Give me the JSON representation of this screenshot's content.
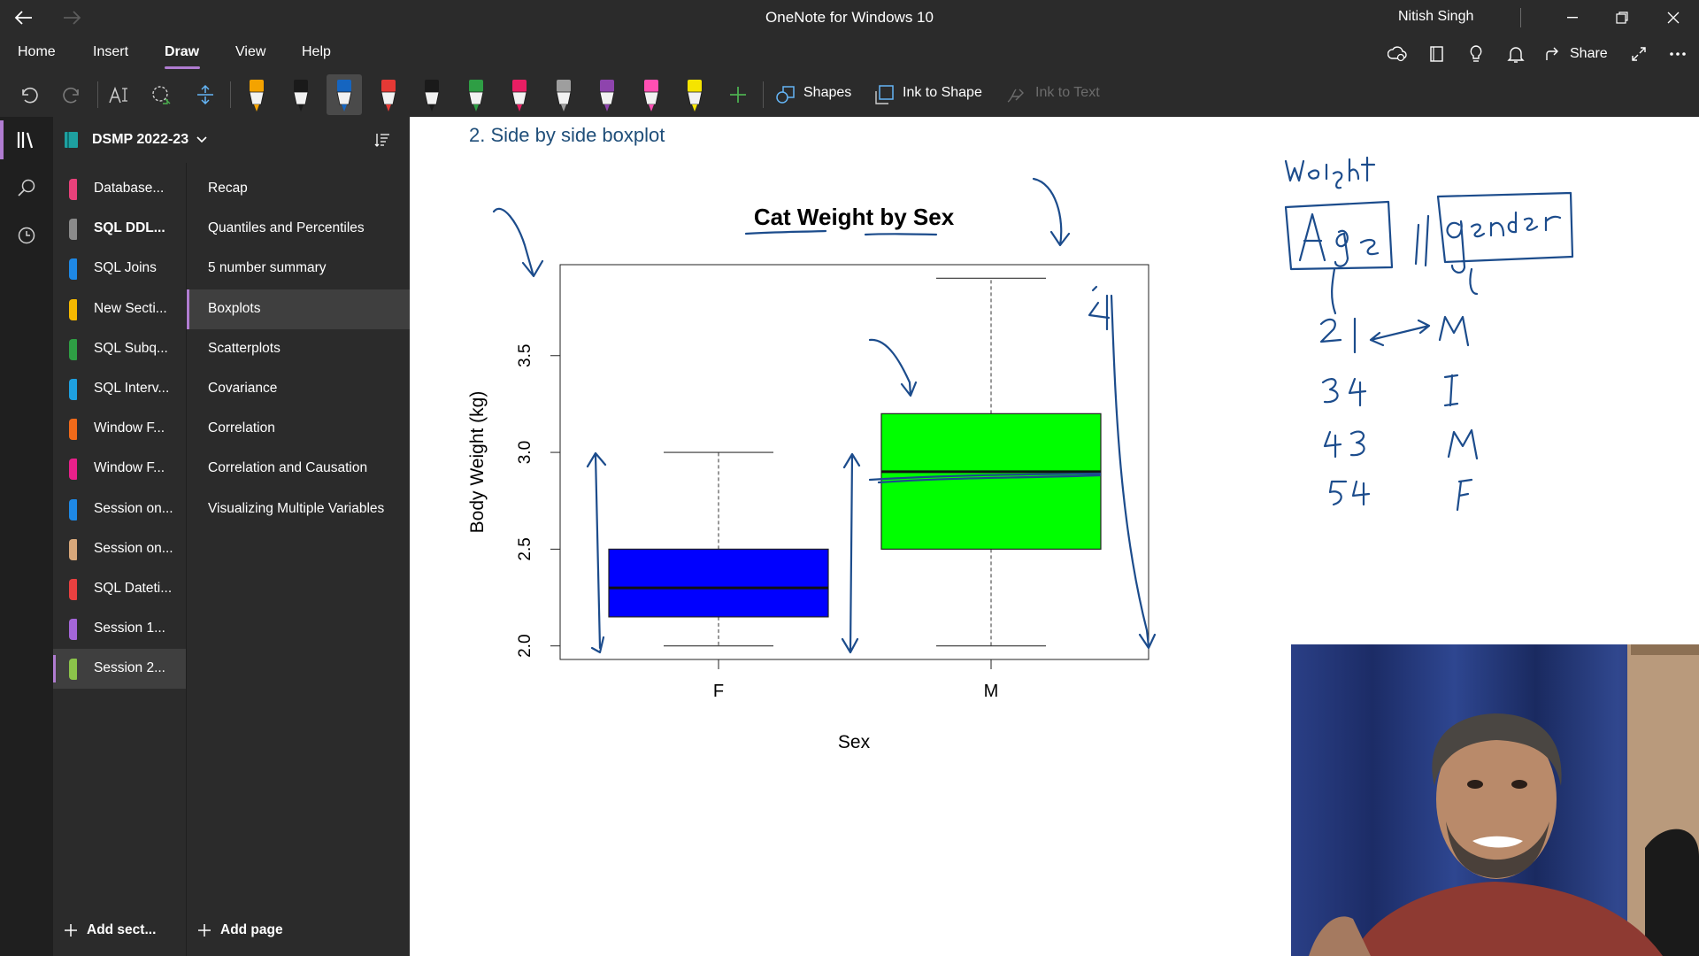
{
  "window": {
    "title": "OneNote for Windows 10",
    "user": "Nitish Singh"
  },
  "menu": {
    "tabs": [
      "Home",
      "Insert",
      "Draw",
      "View",
      "Help"
    ],
    "active_tab": "Draw",
    "share_label": "Share"
  },
  "toolbar": {
    "shapes_label": "Shapes",
    "ink_to_shape_label": "Ink to Shape",
    "ink_to_text_label": "Ink to Text",
    "pen_colors": [
      "#f4a300",
      "#1a1a1a",
      "#1565c0",
      "#e53935",
      "#1a1a1a",
      "#2e9e44",
      "#e91e63",
      "#9e9e9e",
      "#8e44ad",
      "#ff4fb3",
      "#f5e400"
    ],
    "pen_labels": [
      "highlighter-orange-pen",
      "black-pen",
      "blue-pen",
      "red-pen",
      "black-marker",
      "green-pen",
      "pink-pen",
      "gray-pen",
      "purple-pen",
      "magenta-pen",
      "yellow-highlighter"
    ]
  },
  "notebook": {
    "name": "DSMP 2022-23"
  },
  "sections": [
    {
      "label": "Database...",
      "color": "#e8417a"
    },
    {
      "label": "SQL DDL...",
      "color": "#8a8a8a"
    },
    {
      "label": "SQL Joins",
      "color": "#1e88e5"
    },
    {
      "label": "New Secti...",
      "color": "#f5b800"
    },
    {
      "label": "SQL Subq...",
      "color": "#2e9e44"
    },
    {
      "label": "SQL Interv...",
      "color": "#1ea0e0"
    },
    {
      "label": "Window F...",
      "color": "#f06a1a"
    },
    {
      "label": "Window F...",
      "color": "#e8208a"
    },
    {
      "label": "Session on...",
      "color": "#1e88e5"
    },
    {
      "label": "Session on...",
      "color": "#d7a77a"
    },
    {
      "label": "SQL Dateti...",
      "color": "#e84040"
    },
    {
      "label": "Session 1...",
      "color": "#a466d8"
    },
    {
      "label": "Session 2...",
      "color": "#8bc34a"
    }
  ],
  "selected_section_index": 12,
  "bold_section_index": 1,
  "pages": [
    "Recap",
    "Quantiles and Percentiles",
    "5 number summary",
    "Boxplots",
    "Scatterplots",
    "Covariance",
    "Correlation",
    "Correlation and Causation",
    "Visualizing Multiple Variables"
  ],
  "selected_page_index": 3,
  "add_section_label": "Add sect...",
  "add_page_label": "Add page",
  "page": {
    "heading": "2.   Side by side boxplot"
  },
  "chart_data": {
    "type": "boxplot",
    "title": "Cat Weight by Sex",
    "xlabel": "Sex",
    "ylabel": "Body Weight (kg)",
    "categories": [
      "F",
      "M"
    ],
    "boxes": [
      {
        "category": "F",
        "min": 2.0,
        "q1": 2.15,
        "median": 2.3,
        "q3": 2.5,
        "max": 3.0,
        "color": "#0000ff"
      },
      {
        "category": "M",
        "min": 2.0,
        "q1": 2.5,
        "median": 2.9,
        "q3": 3.2,
        "max": 3.9,
        "color": "#00ff00"
      }
    ],
    "yticks": [
      "2.0",
      "2.5",
      "3.0",
      "3.5"
    ],
    "ylim": [
      1.93,
      3.97
    ]
  },
  "handwritten_notes": {
    "weight": "weight",
    "age": "Age",
    "gender": "gender",
    "rows": [
      {
        "age": "21",
        "gender": "M"
      },
      {
        "age": "34",
        "gender": "I"
      },
      {
        "age": "43",
        "gender": "M"
      },
      {
        "age": "54",
        "gender": "F"
      }
    ],
    "range_mark": "24"
  }
}
